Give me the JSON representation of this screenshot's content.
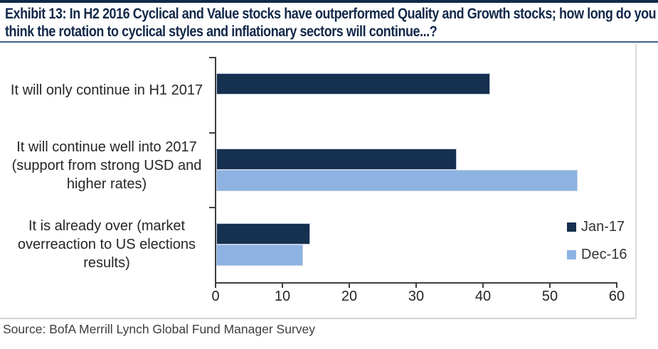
{
  "title": "Exhibit 13: In H2 2016 Cyclical and Value stocks have outperformed Quality and Growth stocks; how long do you think the rotation to cyclical styles and inflationary sectors will continue...?",
  "source": "Source: BofA Merrill Lynch Global Fund Manager Survey",
  "colors": {
    "title_navy": "#12284a",
    "title_rule_blue": "#44618d",
    "axis_gray": "#3f3f3f",
    "frame_gray": "#dcdcdc",
    "jan17_navy": "#16304f",
    "dec16_blue": "#8db3e2"
  },
  "chart_data": {
    "type": "bar",
    "orientation": "horizontal",
    "categories": [
      "It will only continue in H1 2017",
      "It will continue well into 2017 (support from strong USD and higher rates)",
      "It is already over (market overreaction to US elections results)"
    ],
    "series": [
      {
        "name": "Jan-17",
        "color": "#16304f",
        "values": [
          41,
          36,
          14
        ]
      },
      {
        "name": "Dec-16",
        "color": "#8db3e2",
        "values": [
          null,
          54,
          13
        ]
      }
    ],
    "xlim": [
      0,
      60
    ],
    "xticks": [
      "0",
      "10",
      "20",
      "30",
      "40",
      "50",
      "60"
    ],
    "grid": false,
    "legend_position": "inside-right"
  }
}
